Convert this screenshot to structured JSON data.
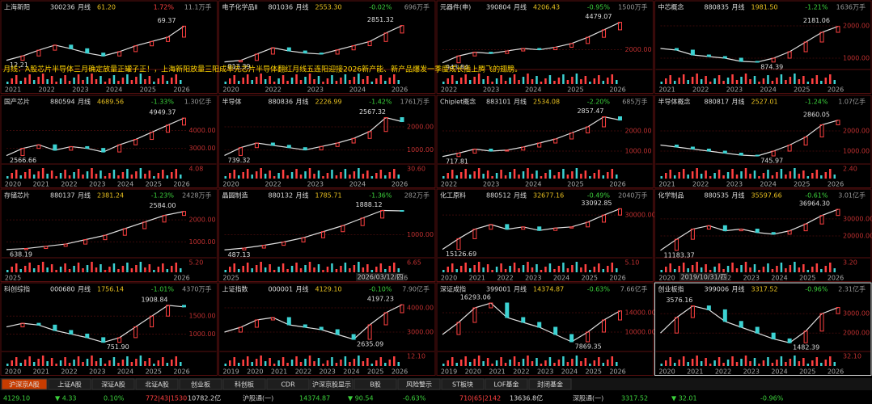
{
  "announcement": "月线：A股芯片半导体三月确定放量正罐子正！，上海新阳放量三阳成率先芯片半导体翻红月线五连阳迎接2026新产能、新产品爆发一季度成长插上腾飞的翅膀。",
  "date_labels": [
    "2026/03/12/四",
    "2019/10/31/四"
  ],
  "panels": [
    {
      "name": "上海新阳",
      "code": "300236",
      "period": "月线",
      "price": "61.20",
      "change": "1.72%",
      "change_color": "#ff4040",
      "vol": "11.1万手",
      "high": "69.37",
      "low": "12.21",
      "years": [
        "2021",
        "2022",
        "2023",
        "2024",
        "2025",
        "2026"
      ],
      "yticks": [],
      "ylim": [
        8,
        75
      ],
      "closes": [
        14,
        20,
        28,
        35,
        30,
        24,
        20,
        26,
        34,
        40,
        46,
        61.2
      ],
      "vol_tick": ""
    },
    {
      "name": "电子化学品Ⅱ",
      "code": "801036",
      "period": "月线",
      "price": "2553.30",
      "change": "-0.02%",
      "change_color": "#3cd23c",
      "vol": "696万手",
      "high": "2851.32",
      "low": "813.39",
      "years": [
        "2020",
        "2022",
        "2023",
        "2024",
        "2026"
      ],
      "yticks": [],
      "ylim": [
        700,
        3000
      ],
      "closes": [
        830,
        900,
        1200,
        1500,
        1350,
        1250,
        1200,
        1400,
        1600,
        1800,
        2200,
        2553.3
      ],
      "vol_tick": ""
    },
    {
      "name": "元器件(申)",
      "code": "390804",
      "period": "月线",
      "price": "4206.43",
      "change": "-0.95%",
      "change_color": "#3cd23c",
      "vol": "1500万手",
      "high": "4479.07",
      "low": "943.84",
      "years": [
        "2022",
        "2023",
        "2024",
        "2025",
        "2026"
      ],
      "yticks": [
        {
          "value": 2000,
          "label": "2000.00"
        }
      ],
      "ylim": [
        800,
        4700
      ],
      "closes": [
        950,
        1500,
        1800,
        1700,
        1900,
        2100,
        2000,
        2200,
        2500,
        3000,
        3600,
        4206.43
      ],
      "vol_tick": ""
    },
    {
      "name": "中芯概念",
      "code": "880835",
      "period": "月线",
      "price": "1981.50",
      "change": "-1.21%",
      "change_color": "#3cd23c",
      "vol": "1636万手",
      "high": "2181.06",
      "low": "874.39",
      "years": [
        "2021",
        "2022",
        "2023",
        "2024",
        "2025",
        "2026"
      ],
      "yticks": [
        {
          "value": 2000,
          "label": "2000.00"
        },
        {
          "value": 1000,
          "label": "1000.00"
        }
      ],
      "ylim": [
        800,
        2300
      ],
      "closes": [
        1300,
        1250,
        1100,
        1050,
        1000,
        900,
        880,
        1000,
        1200,
        1500,
        1800,
        1981.5
      ],
      "vol_tick": ""
    },
    {
      "name": "国产芯片",
      "code": "880594",
      "period": "月线",
      "price": "4689.56",
      "change": "-1.33%",
      "change_color": "#3cd23c",
      "vol": "1.30亿手",
      "high": "4949.37",
      "low": "2566.66",
      "years": [
        "2020",
        "2021",
        "2022",
        "2023",
        "2024",
        "2025",
        "2026"
      ],
      "yticks": [
        {
          "value": 4000,
          "label": "4000.00"
        },
        {
          "value": 3000,
          "label": "3000.00"
        }
      ],
      "ylim": [
        2400,
        5100
      ],
      "closes": [
        2600,
        3000,
        3200,
        2900,
        3100,
        3000,
        2800,
        3200,
        3500,
        3900,
        4300,
        4689.56
      ],
      "vol_tick": "4.08"
    },
    {
      "name": "半导体",
      "code": "880836",
      "period": "月线",
      "price": "2226.99",
      "change": "-1.42%",
      "change_color": "#3cd23c",
      "vol": "1761万手",
      "high": "2567.32",
      "low": "739.32",
      "years": [
        "2020",
        "2022",
        "2023",
        "2024",
        "2026"
      ],
      "yticks": [
        {
          "value": 2000,
          "label": "2000.00"
        },
        {
          "value": 1000,
          "label": "1000.00"
        }
      ],
      "ylim": [
        600,
        2700
      ],
      "closes": [
        760,
        1100,
        1300,
        1200,
        1100,
        1000,
        1150,
        1300,
        1500,
        1800,
        2400,
        2226.99
      ],
      "vol_tick": "30.60"
    },
    {
      "name": "Chiplet概念",
      "code": "883101",
      "period": "月线",
      "price": "2534.08",
      "change": "-2.20%",
      "change_color": "#3cd23c",
      "vol": "685万手",
      "high": "2857.47",
      "low": "717.81",
      "years": [
        "2022",
        "2023",
        "2024",
        "2025",
        "2026"
      ],
      "yticks": [
        {
          "value": 2000,
          "label": "2000.00"
        },
        {
          "value": 1000,
          "label": "1000.00"
        }
      ],
      "ylim": [
        600,
        3000
      ],
      "closes": [
        730,
        900,
        1100,
        1000,
        1050,
        1200,
        1400,
        1600,
        1900,
        2200,
        2700,
        2534.08
      ],
      "vol_tick": ""
    },
    {
      "name": "半导体概念",
      "code": "880817",
      "period": "月线",
      "price": "2527.01",
      "change": "-1.24%",
      "change_color": "#3cd23c",
      "vol": "1.07亿手",
      "high": "2860.05",
      "low": "745.97",
      "years": [
        "2021",
        "2022",
        "2023",
        "2024",
        "2025",
        "2026"
      ],
      "yticks": [
        {
          "value": 2000,
          "label": "2000.00"
        },
        {
          "value": 1000,
          "label": "1000.00"
        }
      ],
      "ylim": [
        600,
        3000
      ],
      "closes": [
        1300,
        1200,
        1100,
        1000,
        900,
        800,
        760,
        1000,
        1300,
        1700,
        2300,
        2527.01
      ],
      "vol_tick": "2.40"
    },
    {
      "name": "存储芯片",
      "code": "880137",
      "period": "月线",
      "price": "2381.24",
      "change": "-1.23%",
      "change_color": "#3cd23c",
      "vol": "2428万手",
      "high": "2584.00",
      "low": "638.19",
      "years": [
        "2025",
        "2026"
      ],
      "yticks": [
        {
          "value": 2000,
          "label": "2000.00"
        },
        {
          "value": 1000,
          "label": "1000.00"
        }
      ],
      "ylim": [
        500,
        2700
      ],
      "closes": [
        650,
        700,
        800,
        900,
        1100,
        1300,
        1600,
        1900,
        2200,
        2381.24
      ],
      "vol_tick": "5.20"
    },
    {
      "name": "晶圆制造",
      "code": "880132",
      "period": "月线",
      "price": "1785.71",
      "change": "-1.36%",
      "change_color": "#3cd23c",
      "vol": "282万手",
      "high": "1888.12",
      "low": "487.13",
      "years": [
        "2025",
        "2026"
      ],
      "yticks": [
        {
          "value": 1000,
          "label": "1000.00"
        }
      ],
      "ylim": [
        400,
        2000
      ],
      "closes": [
        500,
        560,
        650,
        760,
        900,
        1100,
        1300,
        1550,
        1800,
        1785.71
      ],
      "vol_tick": "6.65"
    },
    {
      "name": "化工原料",
      "code": "880512",
      "period": "月线",
      "price": "32677.16",
      "change": "-0.49%",
      "change_color": "#3cd23c",
      "vol": "2040万手",
      "high": "33092.85",
      "low": "15126.69",
      "years": [
        "2020",
        "2021",
        "2022",
        "2023",
        "2024",
        "2025",
        "2026"
      ],
      "yticks": [
        {
          "value": 30000,
          "label": "30000.00"
        }
      ],
      "ylim": [
        14000,
        34500
      ],
      "closes": [
        15500,
        20000,
        24000,
        26000,
        24000,
        25000,
        23500,
        24500,
        25000,
        27000,
        30000,
        32677.16
      ],
      "vol_tick": "5.10"
    },
    {
      "name": "化学制品",
      "code": "880535",
      "period": "月线",
      "price": "35597.66",
      "change": "-0.61%",
      "change_color": "#3cd23c",
      "vol": "3.01亿手",
      "high": "36964.30",
      "low": "11183.37",
      "years": [
        "2020",
        "2021",
        "2022",
        "2023",
        "2024",
        "2025",
        "2026"
      ],
      "yticks": [
        {
          "value": 30000,
          "label": "30000.00"
        },
        {
          "value": 20000,
          "label": "20000.00"
        }
      ],
      "ylim": [
        10000,
        38500
      ],
      "closes": [
        11500,
        18000,
        24000,
        26000,
        23000,
        24000,
        22000,
        21000,
        23000,
        27000,
        32000,
        35597.66
      ],
      "vol_tick": "3.20"
    },
    {
      "name": "科创综指",
      "code": "000680",
      "period": "月线",
      "price": "1756.14",
      "change": "-1.01%",
      "change_color": "#3cd23c",
      "vol": "4370万手",
      "high": "1908.84",
      "low": "751.90",
      "years": [
        "2020",
        "2021",
        "2022",
        "2023",
        "2024",
        "2025",
        "2026"
      ],
      "yticks": [
        {
          "value": 1500,
          "label": "1500.00"
        },
        {
          "value": 1000,
          "label": "1000.00"
        }
      ],
      "ylim": [
        650,
        2000
      ],
      "closes": [
        1200,
        1300,
        1250,
        1100,
        1000,
        900,
        770,
        900,
        1200,
        1500,
        1800,
        1756.14
      ],
      "vol_tick": ""
    },
    {
      "name": "上证指数",
      "code": "000001",
      "period": "月线",
      "price": "4129.10",
      "change": "-0.10%",
      "change_color": "#3cd23c",
      "vol": "7.90亿手",
      "high": "4197.23",
      "low": "2635.09",
      "years": [
        "2019",
        "2020",
        "2021",
        "2022",
        "2023",
        "2024",
        "2025",
        "2026"
      ],
      "yticks": [
        {
          "value": 4000,
          "label": "4000.00"
        },
        {
          "value": 3000,
          "label": "3000.00"
        }
      ],
      "ylim": [
        2400,
        4400
      ],
      "closes": [
        3000,
        3200,
        3500,
        3600,
        3300,
        3200,
        3100,
        2900,
        2700,
        3300,
        3800,
        4129.1
      ],
      "vol_tick": "12.10"
    },
    {
      "name": "深证成指",
      "code": "399001",
      "period": "月线",
      "price": "14374.87",
      "change": "-0.63%",
      "change_color": "#3cd23c",
      "vol": "7.66亿手",
      "high": "16293.06",
      "low": "7869.35",
      "years": [
        "2019",
        "2020",
        "2021",
        "2022",
        "2023",
        "2024",
        "2025",
        "2026"
      ],
      "yticks": [
        {
          "value": 14000,
          "label": "14000.00"
        },
        {
          "value": 10000,
          "label": "10000.00"
        }
      ],
      "ylim": [
        7000,
        17000
      ],
      "closes": [
        9500,
        12000,
        15000,
        16000,
        13000,
        12000,
        11000,
        9500,
        8000,
        10000,
        12500,
        14374.87
      ],
      "vol_tick": ""
    },
    {
      "name": "创业板指",
      "code": "399006",
      "period": "月线",
      "price": "3317.52",
      "change": "-0.96%",
      "change_color": "#3cd23c",
      "vol": "2.31亿手",
      "high": "3576.16",
      "low": "1482.39",
      "years": [
        "2020",
        "2021",
        "2022",
        "2023",
        "2024",
        "2025",
        "2026"
      ],
      "yticks": [
        {
          "value": 3000,
          "label": "3000.00"
        },
        {
          "value": 2000,
          "label": "2000.00"
        }
      ],
      "ylim": [
        1300,
        3800
      ],
      "closes": [
        2000,
        2800,
        3400,
        3200,
        2600,
        2300,
        2000,
        1700,
        1500,
        2100,
        3000,
        3317.52
      ],
      "vol_tick": "32.10"
    }
  ],
  "tabs": [
    "沪深京A股",
    "上证A股",
    "深证A股",
    "北证A股",
    "创业板",
    "科创板",
    "CDR",
    "沪深京股显示",
    "B股",
    "风险警示",
    "ST板块",
    "LOF基金",
    "封闭基金"
  ],
  "status": [
    {
      "text": "4129.10",
      "color": "#3cd23c"
    },
    {
      "text": "▼ 4.33",
      "color": "#3cd23c"
    },
    {
      "text": "0.10%",
      "color": "#3cd23c"
    },
    {
      "text": "772|43|1530",
      "color": "#ff4040"
    },
    {
      "text": "10782.2亿",
      "color": "#dddddd"
    },
    {
      "text": "沪股通(一)",
      "color": "#cccccc"
    },
    {
      "text": "14374.87",
      "color": "#3cd23c"
    },
    {
      "text": "▼ 90.54",
      "color": "#3cd23c"
    },
    {
      "text": "-0.63%",
      "color": "#3cd23c"
    },
    {
      "text": "710|65|2142",
      "color": "#ff4040"
    },
    {
      "text": "13636.8亿",
      "color": "#dddddd"
    },
    {
      "text": "深股通(一)",
      "color": "#cccccc"
    },
    {
      "text": "3317.52",
      "color": "#3cd23c"
    },
    {
      "text": "▼ 32.01",
      "color": "#3cd23c"
    },
    {
      "text": "-0.96%",
      "color": "#3cd23c"
    }
  ]
}
